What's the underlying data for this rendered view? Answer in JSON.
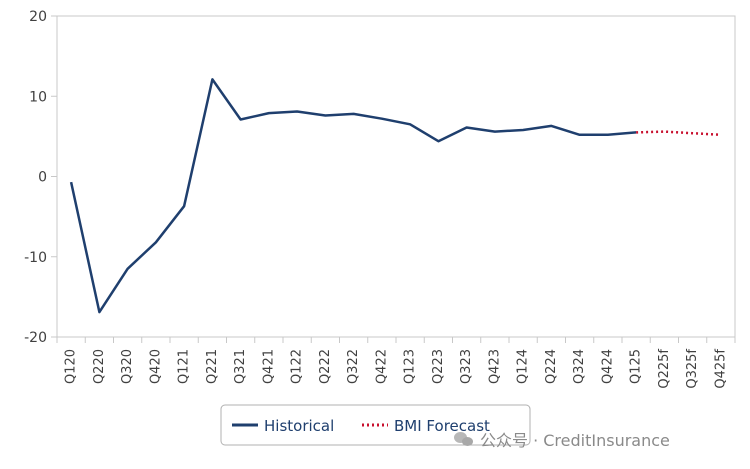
{
  "chart_data": {
    "type": "line",
    "categories": [
      "Q120",
      "Q220",
      "Q320",
      "Q420",
      "Q121",
      "Q221",
      "Q321",
      "Q421",
      "Q122",
      "Q222",
      "Q322",
      "Q422",
      "Q123",
      "Q223",
      "Q323",
      "Q423",
      "Q124",
      "Q224",
      "Q324",
      "Q424",
      "Q125",
      "Q225f",
      "Q325f",
      "Q425f"
    ],
    "series": [
      {
        "name": "Historical",
        "color": "#1f3f6e",
        "style": "solid",
        "values": [
          -0.7,
          -16.9,
          -11.5,
          -8.2,
          -3.7,
          12.1,
          7.1,
          7.9,
          8.1,
          7.6,
          7.8,
          7.2,
          6.5,
          4.4,
          6.1,
          5.6,
          5.8,
          6.3,
          5.2,
          5.2,
          5.5,
          null,
          null,
          null
        ]
      },
      {
        "name": "BMI Forecast",
        "color": "#c8102e",
        "style": "dotted",
        "values": [
          null,
          null,
          null,
          null,
          null,
          null,
          null,
          null,
          null,
          null,
          null,
          null,
          null,
          null,
          null,
          null,
          null,
          null,
          null,
          null,
          5.5,
          5.6,
          5.4,
          5.2
        ]
      }
    ],
    "ylim": [
      -20,
      20
    ],
    "yticks": [
      20,
      10,
      0,
      -10,
      -20
    ],
    "grid": false,
    "legend_position": "bottom"
  },
  "watermark": {
    "text": "公众号 · CreditInsurance"
  }
}
